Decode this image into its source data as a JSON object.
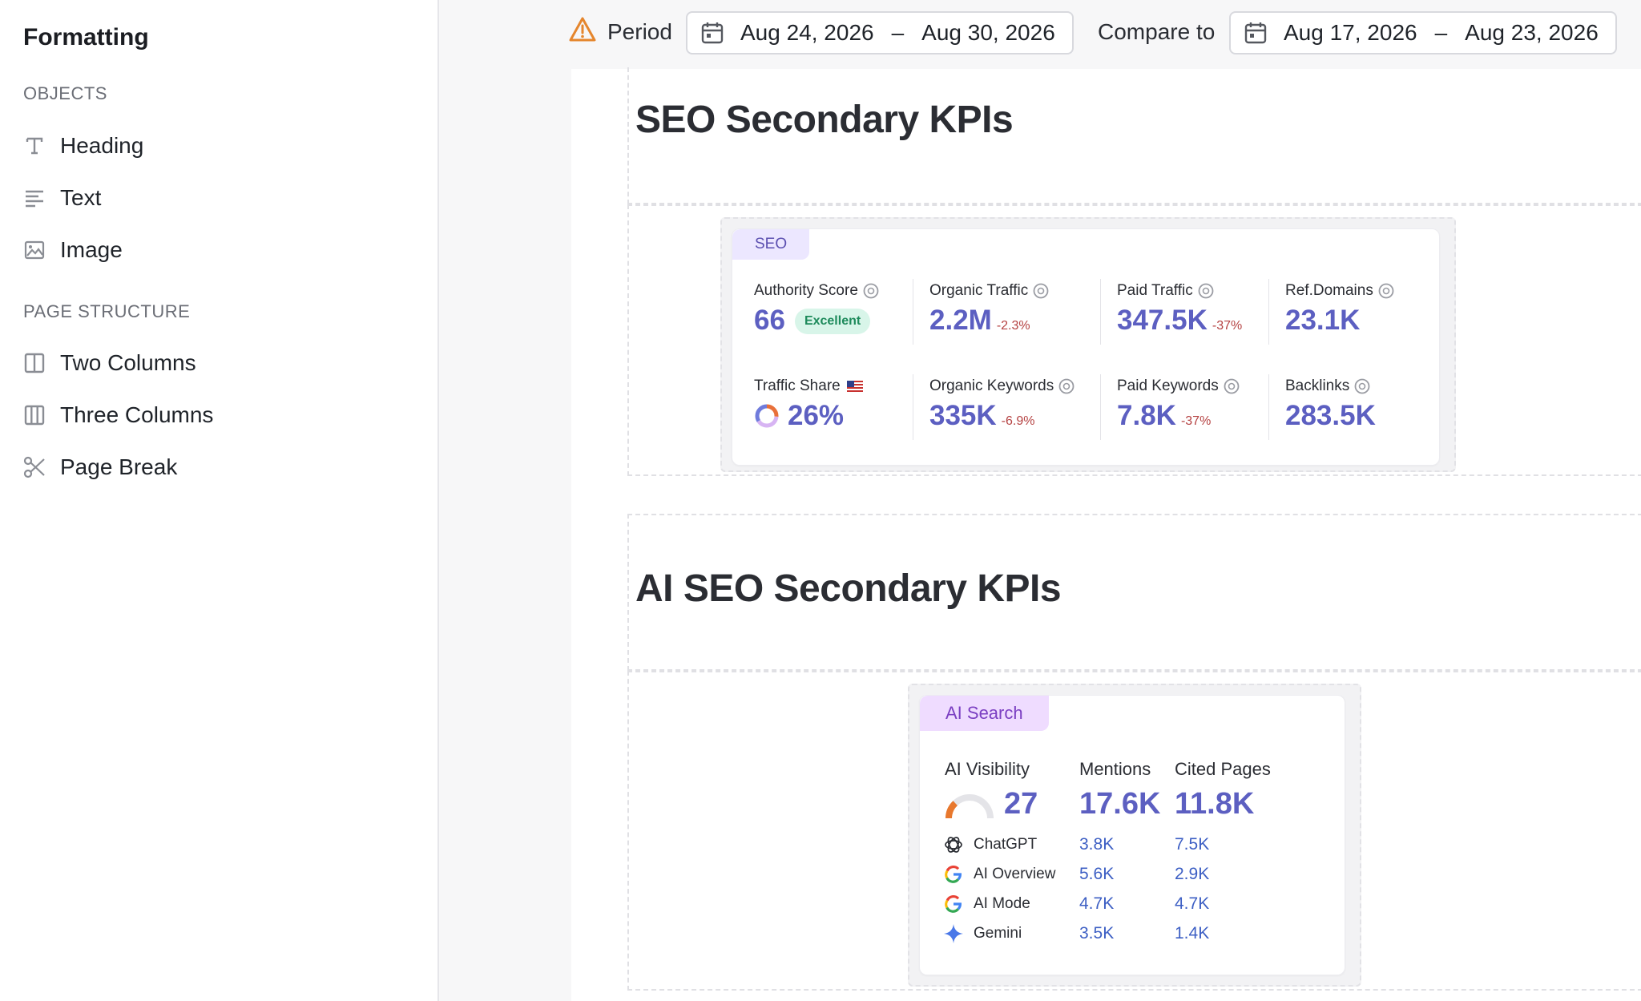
{
  "sidebar": {
    "title": "Formatting",
    "objects_label": "OBJECTS",
    "objects": [
      {
        "label": "Heading",
        "icon": "heading-icon"
      },
      {
        "label": "Text",
        "icon": "text-icon"
      },
      {
        "label": "Image",
        "icon": "image-icon"
      }
    ],
    "structure_label": "PAGE STRUCTURE",
    "structure": [
      {
        "label": "Two Columns",
        "icon": "two-columns-icon"
      },
      {
        "label": "Three Columns",
        "icon": "three-columns-icon"
      },
      {
        "label": "Page Break",
        "icon": "scissors-icon"
      }
    ]
  },
  "topbar": {
    "period_label": "Period",
    "period_start": "Aug 24, 2026",
    "period_end": "Aug 30, 2026",
    "compare_label": "Compare to",
    "compare_start": "Aug 17, 2026",
    "compare_end": "Aug 23, 2026",
    "separator": "–"
  },
  "seo_section": {
    "heading": "SEO Secondary KPIs",
    "tag": "SEO",
    "metrics": [
      {
        "label": "Authority Score",
        "value": "66",
        "badge": "Excellent"
      },
      {
        "label": "Organic Traffic",
        "value": "2.2M",
        "delta": "-2.3%"
      },
      {
        "label": "Paid Traffic",
        "value": "347.5K",
        "delta": "-37%"
      },
      {
        "label": "Ref.Domains",
        "value": "23.1K"
      },
      {
        "label": "Traffic Share",
        "value": "26%"
      },
      {
        "label": "Organic Keywords",
        "value": "335K",
        "delta": "-6.9%"
      },
      {
        "label": "Paid Keywords",
        "value": "7.8K",
        "delta": "-37%"
      },
      {
        "label": "Backlinks",
        "value": "283.5K"
      }
    ]
  },
  "ai_section": {
    "heading": "AI SEO Secondary KPIs",
    "tag": "AI Search",
    "columns": {
      "visibility": {
        "label": "AI Visibility",
        "value": "27"
      },
      "mentions": {
        "label": "Mentions",
        "value": "17.6K"
      },
      "cited": {
        "label": "Cited Pages",
        "value": "11.8K"
      }
    },
    "rows": [
      {
        "engine": "ChatGPT",
        "mentions": "3.8K",
        "cited": "7.5K",
        "icon": "chatgpt-icon"
      },
      {
        "engine": "AI Overview",
        "mentions": "5.6K",
        "cited": "2.9K",
        "icon": "google-icon"
      },
      {
        "engine": "AI Mode",
        "mentions": "4.7K",
        "cited": "4.7K",
        "icon": "google-icon"
      },
      {
        "engine": "Gemini",
        "mentions": "3.5K",
        "cited": "1.4K",
        "icon": "gemini-icon"
      }
    ]
  },
  "colors": {
    "accent_value": "#5c5fc1",
    "negative_delta": "#b54242",
    "badge_bg": "#d8f5e9",
    "warning": "#e5862d"
  }
}
